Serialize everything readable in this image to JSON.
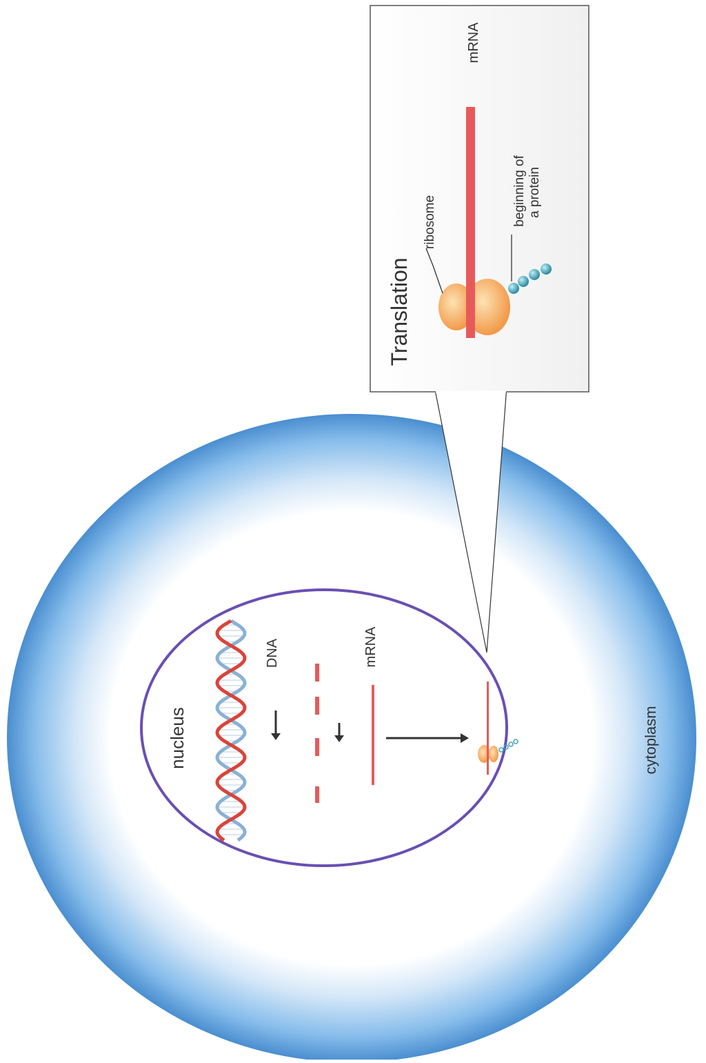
{
  "labels": {
    "nucleus": "nucleus",
    "dna": "DNA",
    "mrna_nucleus": "mRNA",
    "cytoplasm": "cytoplasm",
    "translation_title": "Translation",
    "mrna_inset": "mRNA",
    "ribosome": "ribosome",
    "protein_line1": "beginning of",
    "protein_line2": "a protein"
  },
  "colors": {
    "cell_membrane": "#5b9fd9",
    "nucleus_envelope": "#6a4fb3",
    "dna_red": "#d9443a",
    "dna_blue": "#8ab1d6",
    "mrna": "#e85a5a",
    "ribosome": "#f7b561",
    "protein": "#3fa3b4"
  }
}
